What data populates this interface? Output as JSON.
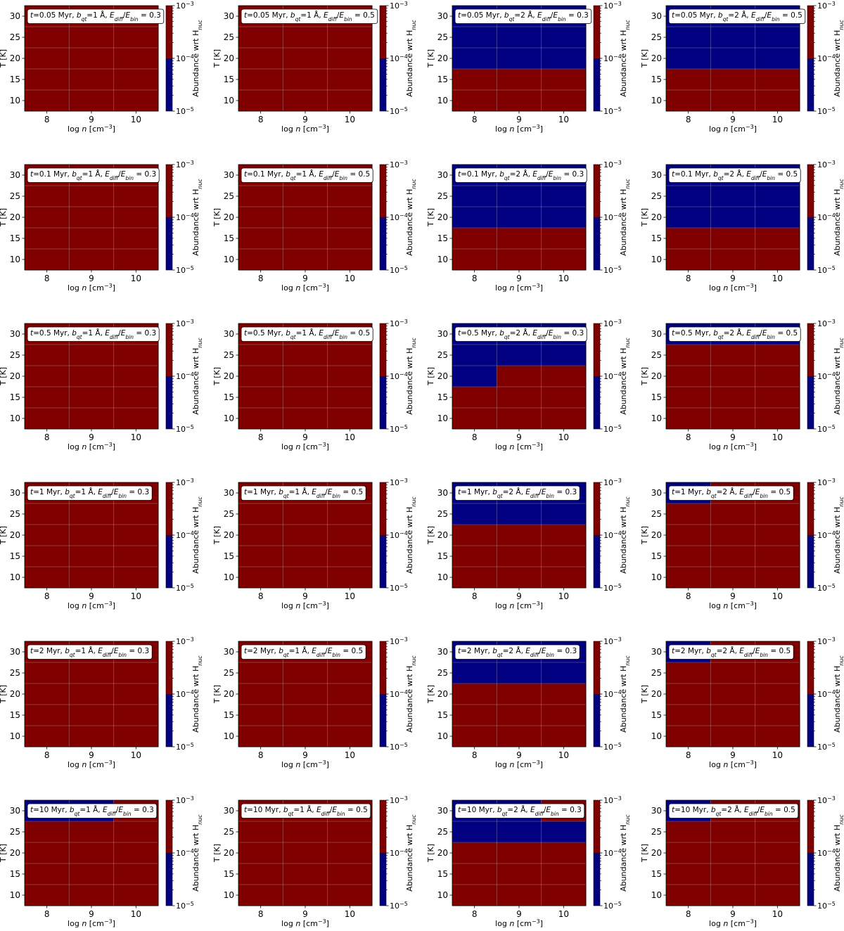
{
  "chart_data": {
    "type": "heatmap",
    "xlabel": "log n [cm$^{-3}$]",
    "ylabel": "T [K]",
    "xlim": [
      7.5,
      10.5
    ],
    "ylim": [
      7.5,
      32.5
    ],
    "xticks": [
      "8",
      "9",
      "10"
    ],
    "yticks": [
      "10",
      "15",
      "20",
      "25",
      "30"
    ],
    "x_centers": [
      8,
      9,
      10
    ],
    "y_centers": [
      10,
      15,
      20,
      25,
      30
    ],
    "grid": true,
    "colorbar": {
      "label": "Abundance wrt H",
      "label_sub": "nuc",
      "ticks": [
        {
          "base": "10",
          "exp": "-3"
        },
        {
          "base": "10",
          "exp": "-4"
        },
        {
          "base": "10",
          "exp": "-5"
        }
      ],
      "range": [
        "1e-5",
        "1e-3"
      ],
      "scale": "log",
      "colors": {
        "high": "#800000",
        "low": "#000080"
      }
    },
    "cell_values_note": "1 = high abundance (dark red, >=1e-4), 0 = low abundance (dark blue, <1e-4); rows ordered T = 10,15,20,25,30 K, columns log n = 8,9,10",
    "panels": [
      {
        "t": "0.05",
        "b": "1",
        "ratio": "0.3",
        "cells": [
          [
            1,
            1,
            1
          ],
          [
            1,
            1,
            1
          ],
          [
            1,
            1,
            1
          ],
          [
            1,
            1,
            1
          ],
          [
            1,
            1,
            1
          ]
        ]
      },
      {
        "t": "0.05",
        "b": "1",
        "ratio": "0.5",
        "cells": [
          [
            1,
            1,
            1
          ],
          [
            1,
            1,
            1
          ],
          [
            1,
            1,
            1
          ],
          [
            1,
            1,
            1
          ],
          [
            1,
            1,
            1
          ]
        ]
      },
      {
        "t": "0.05",
        "b": "2",
        "ratio": "0.3",
        "cells": [
          [
            1,
            1,
            1
          ],
          [
            1,
            1,
            1
          ],
          [
            0,
            0,
            0
          ],
          [
            0,
            0,
            0
          ],
          [
            0,
            0,
            0
          ]
        ]
      },
      {
        "t": "0.05",
        "b": "2",
        "ratio": "0.5",
        "cells": [
          [
            1,
            1,
            1
          ],
          [
            1,
            1,
            1
          ],
          [
            0,
            0,
            0
          ],
          [
            0,
            0,
            0
          ],
          [
            0,
            0,
            0
          ]
        ]
      },
      {
        "t": "0.1",
        "b": "1",
        "ratio": "0.3",
        "cells": [
          [
            1,
            1,
            1
          ],
          [
            1,
            1,
            1
          ],
          [
            1,
            1,
            1
          ],
          [
            1,
            1,
            1
          ],
          [
            1,
            1,
            1
          ]
        ]
      },
      {
        "t": "0.1",
        "b": "1",
        "ratio": "0.5",
        "cells": [
          [
            1,
            1,
            1
          ],
          [
            1,
            1,
            1
          ],
          [
            1,
            1,
            1
          ],
          [
            1,
            1,
            1
          ],
          [
            1,
            1,
            1
          ]
        ]
      },
      {
        "t": "0.1",
        "b": "2",
        "ratio": "0.3",
        "cells": [
          [
            1,
            1,
            1
          ],
          [
            1,
            1,
            1
          ],
          [
            0,
            0,
            0
          ],
          [
            0,
            0,
            0
          ],
          [
            0,
            0,
            0
          ]
        ]
      },
      {
        "t": "0.1",
        "b": "2",
        "ratio": "0.5",
        "cells": [
          [
            1,
            1,
            1
          ],
          [
            1,
            1,
            1
          ],
          [
            0,
            0,
            0
          ],
          [
            0,
            0,
            0
          ],
          [
            0,
            0,
            0
          ]
        ]
      },
      {
        "t": "0.5",
        "b": "1",
        "ratio": "0.3",
        "cells": [
          [
            1,
            1,
            1
          ],
          [
            1,
            1,
            1
          ],
          [
            1,
            1,
            1
          ],
          [
            1,
            1,
            1
          ],
          [
            1,
            1,
            1
          ]
        ]
      },
      {
        "t": "0.5",
        "b": "1",
        "ratio": "0.5",
        "cells": [
          [
            1,
            1,
            1
          ],
          [
            1,
            1,
            1
          ],
          [
            1,
            1,
            1
          ],
          [
            1,
            1,
            1
          ],
          [
            1,
            1,
            1
          ]
        ]
      },
      {
        "t": "0.5",
        "b": "2",
        "ratio": "0.3",
        "cells": [
          [
            1,
            1,
            1
          ],
          [
            1,
            1,
            1
          ],
          [
            0,
            1,
            1
          ],
          [
            0,
            0,
            0
          ],
          [
            0,
            0,
            0
          ]
        ]
      },
      {
        "t": "0.5",
        "b": "2",
        "ratio": "0.5",
        "cells": [
          [
            1,
            1,
            1
          ],
          [
            1,
            1,
            1
          ],
          [
            1,
            1,
            1
          ],
          [
            1,
            1,
            1
          ],
          [
            0,
            0,
            0
          ]
        ]
      },
      {
        "t": "1",
        "b": "1",
        "ratio": "0.3",
        "cells": [
          [
            1,
            1,
            1
          ],
          [
            1,
            1,
            1
          ],
          [
            1,
            1,
            1
          ],
          [
            1,
            1,
            1
          ],
          [
            1,
            1,
            1
          ]
        ]
      },
      {
        "t": "1",
        "b": "1",
        "ratio": "0.5",
        "cells": [
          [
            1,
            1,
            1
          ],
          [
            1,
            1,
            1
          ],
          [
            1,
            1,
            1
          ],
          [
            1,
            1,
            1
          ],
          [
            1,
            1,
            1
          ]
        ]
      },
      {
        "t": "1",
        "b": "2",
        "ratio": "0.3",
        "cells": [
          [
            1,
            1,
            1
          ],
          [
            1,
            1,
            1
          ],
          [
            1,
            1,
            1
          ],
          [
            0,
            0,
            0
          ],
          [
            0,
            0,
            0
          ]
        ]
      },
      {
        "t": "1",
        "b": "2",
        "ratio": "0.5",
        "cells": [
          [
            1,
            1,
            1
          ],
          [
            1,
            1,
            1
          ],
          [
            1,
            1,
            1
          ],
          [
            1,
            1,
            1
          ],
          [
            0,
            1,
            1
          ]
        ]
      },
      {
        "t": "2",
        "b": "1",
        "ratio": "0.3",
        "cells": [
          [
            1,
            1,
            1
          ],
          [
            1,
            1,
            1
          ],
          [
            1,
            1,
            1
          ],
          [
            1,
            1,
            1
          ],
          [
            1,
            1,
            1
          ]
        ]
      },
      {
        "t": "2",
        "b": "1",
        "ratio": "0.5",
        "cells": [
          [
            1,
            1,
            1
          ],
          [
            1,
            1,
            1
          ],
          [
            1,
            1,
            1
          ],
          [
            1,
            1,
            1
          ],
          [
            1,
            1,
            1
          ]
        ]
      },
      {
        "t": "2",
        "b": "2",
        "ratio": "0.3",
        "cells": [
          [
            1,
            1,
            1
          ],
          [
            1,
            1,
            1
          ],
          [
            1,
            1,
            1
          ],
          [
            0,
            0,
            0
          ],
          [
            0,
            0,
            0
          ]
        ]
      },
      {
        "t": "2",
        "b": "2",
        "ratio": "0.5",
        "cells": [
          [
            1,
            1,
            1
          ],
          [
            1,
            1,
            1
          ],
          [
            1,
            1,
            1
          ],
          [
            1,
            1,
            1
          ],
          [
            0,
            1,
            1
          ]
        ]
      },
      {
        "t": "10",
        "b": "1",
        "ratio": "0.3",
        "cells": [
          [
            1,
            1,
            1
          ],
          [
            1,
            1,
            1
          ],
          [
            1,
            1,
            1
          ],
          [
            1,
            1,
            1
          ],
          [
            0,
            0,
            1
          ]
        ]
      },
      {
        "t": "10",
        "b": "1",
        "ratio": "0.5",
        "cells": [
          [
            1,
            1,
            1
          ],
          [
            1,
            1,
            1
          ],
          [
            1,
            1,
            1
          ],
          [
            1,
            1,
            1
          ],
          [
            1,
            1,
            1
          ]
        ]
      },
      {
        "t": "10",
        "b": "2",
        "ratio": "0.3",
        "cells": [
          [
            1,
            1,
            1
          ],
          [
            1,
            1,
            1
          ],
          [
            1,
            1,
            1
          ],
          [
            0,
            0,
            0
          ],
          [
            0,
            0,
            1
          ]
        ]
      },
      {
        "t": "10",
        "b": "2",
        "ratio": "0.5",
        "cells": [
          [
            1,
            1,
            1
          ],
          [
            1,
            1,
            1
          ],
          [
            1,
            1,
            1
          ],
          [
            1,
            1,
            1
          ],
          [
            0,
            1,
            1
          ]
        ]
      }
    ]
  }
}
